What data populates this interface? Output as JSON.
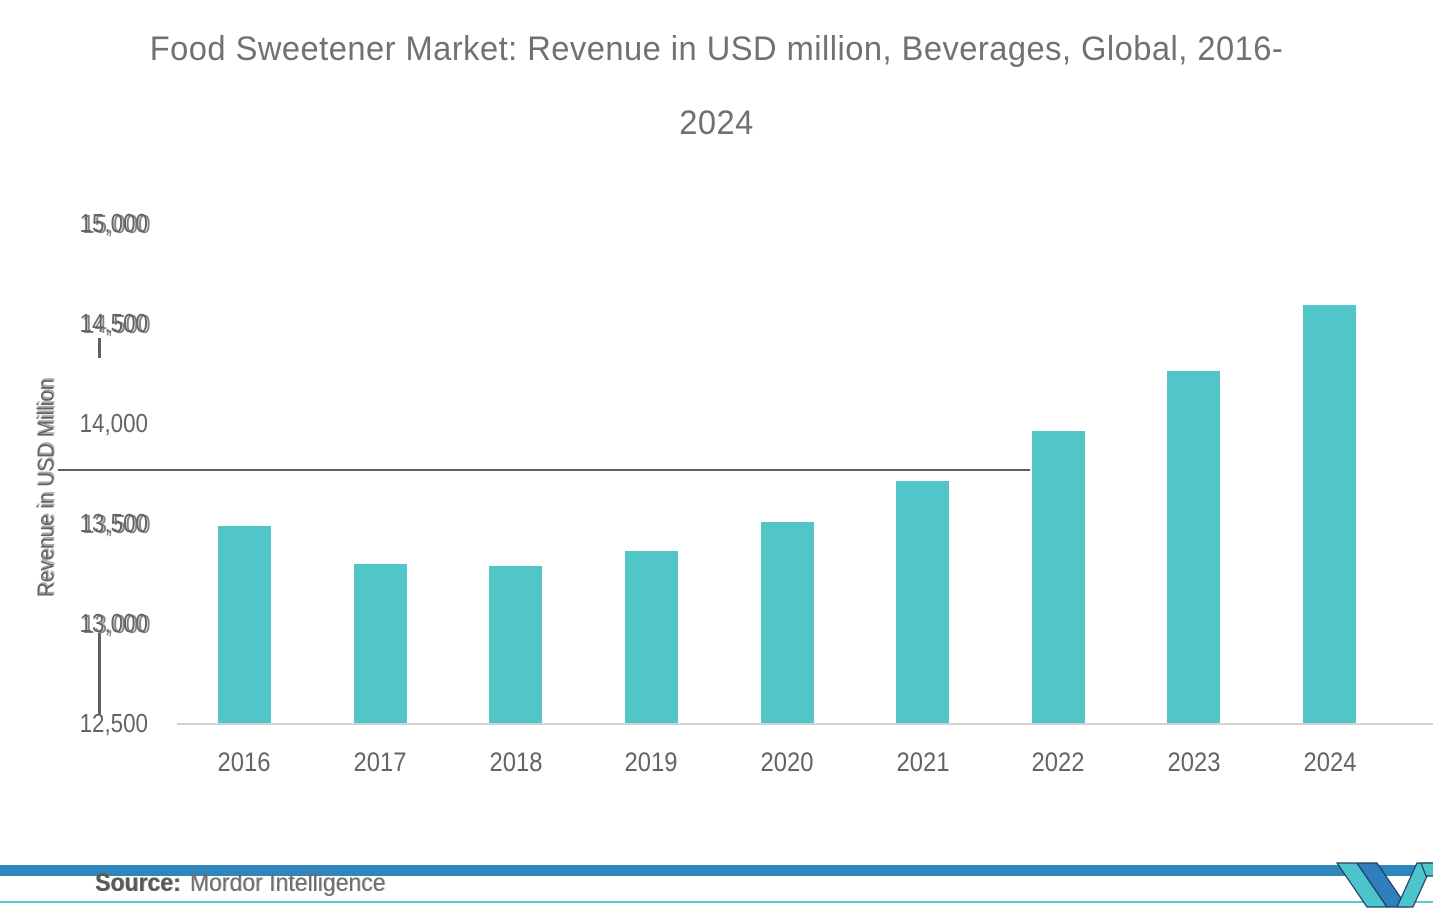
{
  "title": {
    "line1": "Food Sweetener Market: Revenue in USD million, Beverages, Global, 2016-",
    "line2": "2024"
  },
  "chart_data": {
    "type": "bar",
    "title": "Food Sweetener Market: Revenue in USD million, Beverages, Global, 2016-2024",
    "categories": [
      "2016",
      "2017",
      "2018",
      "2019",
      "2020",
      "2021",
      "2022",
      "2023",
      "2024"
    ],
    "values": [
      13485,
      13295,
      13285,
      13360,
      13505,
      13710,
      13960,
      14260,
      14590
    ],
    "series_name": "Revenue in USD million",
    "xlabel": "",
    "ylabel": "Revenue in USD Million",
    "ylim": [
      12500,
      15000
    ],
    "ytick_interval": 500,
    "ytick_labels": [
      "15,000",
      "14,500",
      "14,000",
      "13,500",
      "13,000",
      "12,500"
    ],
    "grid": false,
    "legend": "none",
    "bar_color": "#52C5C9"
  },
  "footer": {
    "source_label": "Source:",
    "source_value": "Mordor Intelligence"
  },
  "branding": {
    "logo_name": "mordor-intelligence-logo-mark"
  },
  "colors": {
    "bar": "#52C5C9",
    "title_text": "#6F7173",
    "axis_text": "#636466",
    "stray_line": "#4A4A4E",
    "baseline": "#D2D2D2",
    "footer_band_blue": "#2E86BD",
    "footer_line_teal": "#5BC8CD",
    "logo_blue": "#2F7FBE",
    "logo_teal": "#4BC4CB",
    "logo_navy": "#1C3B5E"
  }
}
